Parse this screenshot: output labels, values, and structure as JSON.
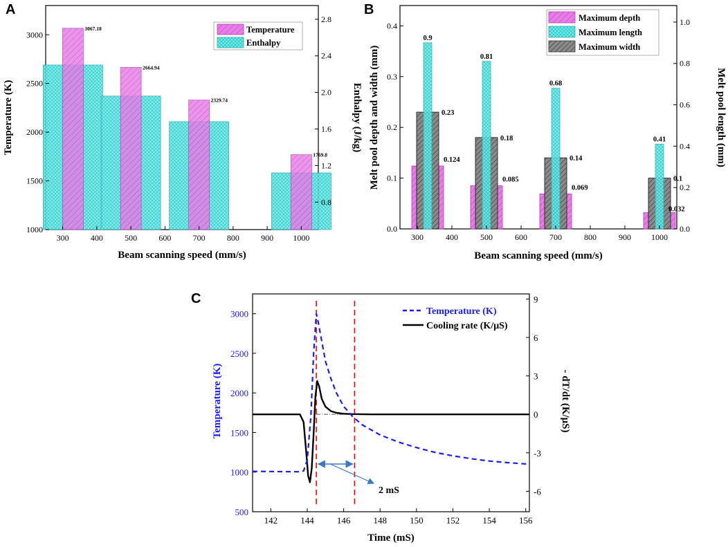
{
  "colors": {
    "pink": "#e87ce8",
    "cyan": "#5ff2f0",
    "gray": "#787878",
    "blue": "#1a1aff",
    "red": "#ff0000",
    "black": "#000000",
    "arrow": "#3c78c8"
  },
  "chart_data": [
    {
      "panel": "A",
      "type": "bar",
      "xlabel": "Beam scanning speed (mm/s)",
      "ylabel": "Temperature (K)",
      "ylabel_right": "Enthalpy (J/kg)",
      "xlim": [
        250,
        1050
      ],
      "ylim": [
        1000,
        3300
      ],
      "ylim_right": [
        0.5,
        2.95
      ],
      "xticks": [
        "300",
        "400",
        "500",
        "600",
        "700",
        "800",
        "900",
        "1000"
      ],
      "yticks": [
        "1000",
        "1500",
        "2000",
        "2500",
        "3000"
      ],
      "yticks_right": [
        "0.8",
        "1.2",
        "1.6",
        "2.0",
        "2.4",
        "2.8"
      ],
      "categories": [
        330,
        500,
        700,
        1000
      ],
      "series": [
        {
          "name": "Temperature",
          "axis": "left",
          "values": [
            3067.18,
            2664.94,
            2329.74,
            1769.8
          ],
          "labels": [
            "3067.18",
            "2664.94",
            "2329.74",
            "1769.8"
          ]
        },
        {
          "name": "Enthalpy",
          "axis": "right",
          "values": [
            2.3,
            1.96,
            1.68,
            1.12
          ]
        }
      ],
      "legend": [
        "Temperature",
        "Enthalpy"
      ],
      "legend_position": "top-right"
    },
    {
      "panel": "B",
      "type": "bar",
      "xlabel": "Beam scanning speed (mm/s)",
      "ylabel": "Melt pool depth and width (mm)",
      "ylabel_right": "Melt pool length (mm)",
      "xlim": [
        250,
        1050
      ],
      "ylim": [
        0,
        0.44
      ],
      "ylim_right": [
        0,
        1.08
      ],
      "xticks": [
        "300",
        "400",
        "500",
        "600",
        "700",
        "800",
        "900",
        "1000"
      ],
      "yticks": [
        "0.0",
        "0.1",
        "0.2",
        "0.3",
        "0.4"
      ],
      "yticks_right": [
        "0.0",
        "0.2",
        "0.4",
        "0.6",
        "0.8",
        "1.0"
      ],
      "categories": [
        330,
        500,
        700,
        1000
      ],
      "series": [
        {
          "name": "Maximum depth",
          "axis": "left",
          "values": [
            0.124,
            0.085,
            0.069,
            0.032
          ],
          "labels": [
            "0.124",
            "0.085",
            "0.069",
            "0.032"
          ]
        },
        {
          "name": "Maximum length",
          "axis": "right",
          "values": [
            0.9,
            0.81,
            0.68,
            0.41
          ],
          "labels": [
            "0.9",
            "0.81",
            "0.68",
            "0.41"
          ]
        },
        {
          "name": "Maximum width",
          "axis": "left",
          "values": [
            0.23,
            0.18,
            0.14,
            0.1
          ],
          "labels": [
            "0.23",
            "0.18",
            "0.14",
            "0.1"
          ]
        }
      ],
      "legend": [
        "Maximum depth",
        "Maximum length",
        "Maximum width"
      ],
      "legend_position": "top-right"
    },
    {
      "panel": "C",
      "type": "line",
      "xlabel": "Time (mS)",
      "ylabel": "Temperature (K)",
      "ylabel_right": "- dT/dt (K/μS)",
      "xlim": [
        141,
        156.2
      ],
      "ylim": [
        500,
        3250
      ],
      "ylim_right": [
        -7.6,
        9.4
      ],
      "xticks": [
        "142",
        "144",
        "146",
        "148",
        "150",
        "152",
        "154",
        "156"
      ],
      "yticks": [
        "500",
        "1000",
        "1500",
        "2000",
        "2500",
        "3000"
      ],
      "yticks_right": [
        "-6",
        "-3",
        "0",
        "3",
        "6",
        "9"
      ],
      "series": [
        {
          "name": "Temperature (K)",
          "axis": "left",
          "style": "dashed",
          "x": [
            141,
            143.5,
            143.8,
            144.0,
            144.2,
            144.35,
            144.5,
            144.6,
            144.8,
            145.0,
            145.3,
            145.6,
            146.0,
            146.5,
            147,
            148,
            149,
            150,
            151,
            152,
            153,
            154,
            155,
            156.2
          ],
          "y": [
            1010,
            1005,
            1015,
            1150,
            1700,
            2500,
            3000,
            2900,
            2650,
            2400,
            2180,
            2000,
            1830,
            1700,
            1600,
            1470,
            1380,
            1310,
            1250,
            1205,
            1170,
            1140,
            1120,
            1100
          ]
        },
        {
          "name": "Cooling rate (K/μS)",
          "axis": "right",
          "style": "solid",
          "x": [
            141,
            143.6,
            143.8,
            143.95,
            144.05,
            144.15,
            144.25,
            144.35,
            144.45,
            144.55,
            144.65,
            144.8,
            145.0,
            145.3,
            145.6,
            146.0,
            146.5,
            147.5,
            156.2
          ],
          "y": [
            0,
            0,
            -0.6,
            -3.0,
            -4.8,
            -5.3,
            -4.2,
            -1.5,
            1.4,
            2.6,
            2.2,
            1.2,
            0.6,
            0.25,
            0.12,
            0.05,
            0.02,
            0,
            0
          ]
        }
      ],
      "vlines": [
        144.5,
        146.6
      ],
      "hline_right": 0,
      "annotation": "2 mS",
      "legend": [
        "Temperature (K)",
        "Cooling rate (K/μS)"
      ],
      "legend_position": "top-right"
    }
  ]
}
